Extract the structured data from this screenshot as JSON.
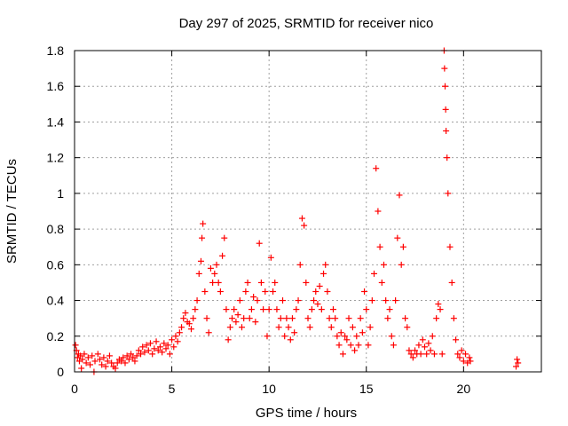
{
  "chart_data": {
    "type": "scatter",
    "title": "Day 297 of 2025, SRMTID for receiver nico",
    "xlabel": "GPS time / hours",
    "ylabel": "SRMTID / TECUs",
    "xlim": [
      0,
      24
    ],
    "ylim": [
      0,
      1.8
    ],
    "xticks": [
      0,
      5,
      10,
      15,
      20
    ],
    "xtick_labels": [
      "0",
      "5",
      "10",
      "15",
      "20"
    ],
    "yticks": [
      0,
      0.2,
      0.4,
      0.6,
      0.8,
      1.0,
      1.2,
      1.4,
      1.6,
      1.8
    ],
    "ytick_labels": [
      "0",
      "0.2",
      "0.4",
      "0.6",
      "0.8",
      "1",
      "1.2",
      "1.4",
      "1.6",
      "1.8"
    ],
    "grid": true,
    "marker": "+",
    "color": "#ff0000",
    "series": [
      {
        "name": "SRMTID",
        "points": [
          [
            0.05,
            0.15
          ],
          [
            0.1,
            0.12
          ],
          [
            0.15,
            0.08
          ],
          [
            0.2,
            0.1
          ],
          [
            0.25,
            0.06
          ],
          [
            0.3,
            0.09
          ],
          [
            0.35,
            0.02
          ],
          [
            0.4,
            0.07
          ],
          [
            0.5,
            0.1
          ],
          [
            0.6,
            0.05
          ],
          [
            0.7,
            0.08
          ],
          [
            0.8,
            0.04
          ],
          [
            0.9,
            0.09
          ],
          [
            1.0,
            0.0
          ],
          [
            1.05,
            0.06
          ],
          [
            1.2,
            0.1
          ],
          [
            1.3,
            0.07
          ],
          [
            1.4,
            0.04
          ],
          [
            1.5,
            0.08
          ],
          [
            1.6,
            0.03
          ],
          [
            1.7,
            0.06
          ],
          [
            1.8,
            0.09
          ],
          [
            1.9,
            0.05
          ],
          [
            2.0,
            0.03
          ],
          [
            2.1,
            0.02
          ],
          [
            2.2,
            0.05
          ],
          [
            2.3,
            0.07
          ],
          [
            2.4,
            0.06
          ],
          [
            2.5,
            0.08
          ],
          [
            2.6,
            0.05
          ],
          [
            2.7,
            0.09
          ],
          [
            2.8,
            0.07
          ],
          [
            2.9,
            0.1
          ],
          [
            3.0,
            0.08
          ],
          [
            3.1,
            0.06
          ],
          [
            3.2,
            0.09
          ],
          [
            3.3,
            0.12
          ],
          [
            3.4,
            0.1
          ],
          [
            3.5,
            0.14
          ],
          [
            3.6,
            0.11
          ],
          [
            3.7,
            0.15
          ],
          [
            3.8,
            0.12
          ],
          [
            3.9,
            0.16
          ],
          [
            4.0,
            0.1
          ],
          [
            4.1,
            0.13
          ],
          [
            4.2,
            0.17
          ],
          [
            4.3,
            0.12
          ],
          [
            4.4,
            0.14
          ],
          [
            4.5,
            0.11
          ],
          [
            4.6,
            0.16
          ],
          [
            4.7,
            0.13
          ],
          [
            4.8,
            0.15
          ],
          [
            4.9,
            0.1
          ],
          [
            5.0,
            0.18
          ],
          [
            5.1,
            0.14
          ],
          [
            5.2,
            0.2
          ],
          [
            5.3,
            0.17
          ],
          [
            5.4,
            0.22
          ],
          [
            5.5,
            0.25
          ],
          [
            5.6,
            0.3
          ],
          [
            5.7,
            0.33
          ],
          [
            5.8,
            0.28
          ],
          [
            5.9,
            0.27
          ],
          [
            6.0,
            0.24
          ],
          [
            6.1,
            0.3
          ],
          [
            6.2,
            0.35
          ],
          [
            6.3,
            0.4
          ],
          [
            6.4,
            0.55
          ],
          [
            6.5,
            0.62
          ],
          [
            6.55,
            0.75
          ],
          [
            6.6,
            0.83
          ],
          [
            6.7,
            0.45
          ],
          [
            6.8,
            0.3
          ],
          [
            6.9,
            0.22
          ],
          [
            7.0,
            0.58
          ],
          [
            7.1,
            0.5
          ],
          [
            7.2,
            0.55
          ],
          [
            7.3,
            0.6
          ],
          [
            7.4,
            0.5
          ],
          [
            7.5,
            0.45
          ],
          [
            7.6,
            0.65
          ],
          [
            7.7,
            0.75
          ],
          [
            7.8,
            0.35
          ],
          [
            7.9,
            0.18
          ],
          [
            8.0,
            0.25
          ],
          [
            8.1,
            0.3
          ],
          [
            8.2,
            0.35
          ],
          [
            8.3,
            0.28
          ],
          [
            8.4,
            0.32
          ],
          [
            8.5,
            0.4
          ],
          [
            8.6,
            0.25
          ],
          [
            8.7,
            0.3
          ],
          [
            8.8,
            0.45
          ],
          [
            8.9,
            0.5
          ],
          [
            9.0,
            0.3
          ],
          [
            9.1,
            0.35
          ],
          [
            9.2,
            0.42
          ],
          [
            9.3,
            0.28
          ],
          [
            9.4,
            0.4
          ],
          [
            9.5,
            0.72
          ],
          [
            9.6,
            0.5
          ],
          [
            9.7,
            0.35
          ],
          [
            9.8,
            0.45
          ],
          [
            9.9,
            0.2
          ],
          [
            10.0,
            0.35
          ],
          [
            10.1,
            0.64
          ],
          [
            10.2,
            0.45
          ],
          [
            10.3,
            0.5
          ],
          [
            10.4,
            0.35
          ],
          [
            10.5,
            0.25
          ],
          [
            10.6,
            0.3
          ],
          [
            10.7,
            0.4
          ],
          [
            10.8,
            0.2
          ],
          [
            10.9,
            0.3
          ],
          [
            11.0,
            0.25
          ],
          [
            11.1,
            0.18
          ],
          [
            11.2,
            0.3
          ],
          [
            11.3,
            0.22
          ],
          [
            11.4,
            0.35
          ],
          [
            11.5,
            0.4
          ],
          [
            11.6,
            0.6
          ],
          [
            11.7,
            0.86
          ],
          [
            11.8,
            0.82
          ],
          [
            11.9,
            0.5
          ],
          [
            12.0,
            0.3
          ],
          [
            12.1,
            0.25
          ],
          [
            12.2,
            0.35
          ],
          [
            12.3,
            0.4
          ],
          [
            12.4,
            0.45
          ],
          [
            12.5,
            0.38
          ],
          [
            12.6,
            0.48
          ],
          [
            12.7,
            0.35
          ],
          [
            12.8,
            0.55
          ],
          [
            12.9,
            0.6
          ],
          [
            13.0,
            0.45
          ],
          [
            13.1,
            0.3
          ],
          [
            13.2,
            0.25
          ],
          [
            13.3,
            0.35
          ],
          [
            13.4,
            0.3
          ],
          [
            13.5,
            0.2
          ],
          [
            13.6,
            0.15
          ],
          [
            13.7,
            0.22
          ],
          [
            13.8,
            0.1
          ],
          [
            13.9,
            0.2
          ],
          [
            14.0,
            0.18
          ],
          [
            14.1,
            0.3
          ],
          [
            14.2,
            0.15
          ],
          [
            14.3,
            0.25
          ],
          [
            14.4,
            0.12
          ],
          [
            14.5,
            0.2
          ],
          [
            14.6,
            0.15
          ],
          [
            14.7,
            0.3
          ],
          [
            14.8,
            0.22
          ],
          [
            14.9,
            0.45
          ],
          [
            15.0,
            0.35
          ],
          [
            15.1,
            0.15
          ],
          [
            15.2,
            0.25
          ],
          [
            15.3,
            0.4
          ],
          [
            15.4,
            0.55
          ],
          [
            15.5,
            1.14
          ],
          [
            15.6,
            0.9
          ],
          [
            15.7,
            0.7
          ],
          [
            15.8,
            0.5
          ],
          [
            15.9,
            0.6
          ],
          [
            16.0,
            0.4
          ],
          [
            16.1,
            0.3
          ],
          [
            16.2,
            0.35
          ],
          [
            16.3,
            0.2
          ],
          [
            16.4,
            0.15
          ],
          [
            16.5,
            0.4
          ],
          [
            16.6,
            0.75
          ],
          [
            16.7,
            0.99
          ],
          [
            16.8,
            0.6
          ],
          [
            16.9,
            0.7
          ],
          [
            17.0,
            0.3
          ],
          [
            17.1,
            0.25
          ],
          [
            17.2,
            0.12
          ],
          [
            17.3,
            0.1
          ],
          [
            17.4,
            0.08
          ],
          [
            17.5,
            0.12
          ],
          [
            17.6,
            0.1
          ],
          [
            17.7,
            0.15
          ],
          [
            17.8,
            0.1
          ],
          [
            17.9,
            0.18
          ],
          [
            18.0,
            0.14
          ],
          [
            18.1,
            0.1
          ],
          [
            18.2,
            0.16
          ],
          [
            18.3,
            0.12
          ],
          [
            18.4,
            0.2
          ],
          [
            18.5,
            0.1
          ],
          [
            18.6,
            0.3
          ],
          [
            18.7,
            0.38
          ],
          [
            18.8,
            0.35
          ],
          [
            18.9,
            0.1
          ],
          [
            19.0,
            1.8
          ],
          [
            19.02,
            1.7
          ],
          [
            19.05,
            1.6
          ],
          [
            19.08,
            1.47
          ],
          [
            19.1,
            1.35
          ],
          [
            19.15,
            1.2
          ],
          [
            19.2,
            1.0
          ],
          [
            19.3,
            0.7
          ],
          [
            19.4,
            0.5
          ],
          [
            19.5,
            0.3
          ],
          [
            19.6,
            0.18
          ],
          [
            19.7,
            0.1
          ],
          [
            19.8,
            0.08
          ],
          [
            19.9,
            0.12
          ],
          [
            20.0,
            0.06
          ],
          [
            20.1,
            0.1
          ],
          [
            20.2,
            0.05
          ],
          [
            20.3,
            0.08
          ],
          [
            20.35,
            0.06
          ],
          [
            22.7,
            0.03
          ],
          [
            22.75,
            0.07
          ],
          [
            22.8,
            0.05
          ]
        ]
      }
    ]
  }
}
